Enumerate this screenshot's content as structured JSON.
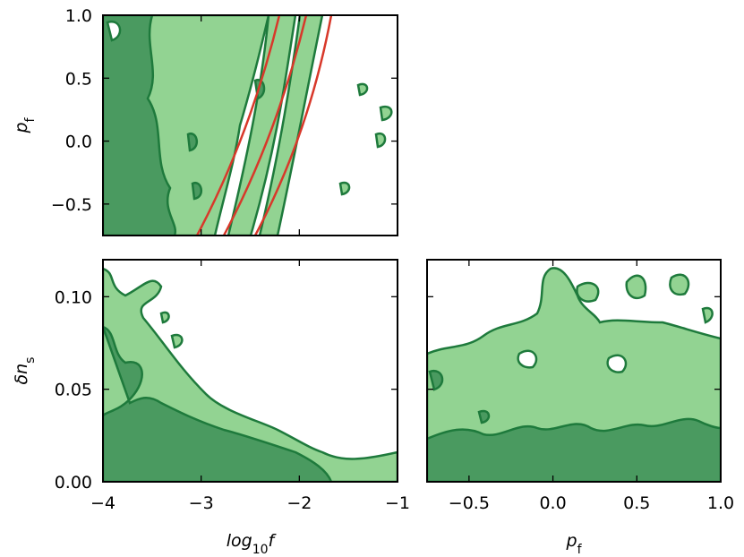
{
  "chart_data": [
    {
      "type": "contour",
      "xlim": [
        -4,
        -1
      ],
      "ylim": [
        -0.75,
        1.0
      ],
      "xticks": [
        -4,
        -3,
        -2,
        -1
      ],
      "show_xticklabels": false,
      "yticks": [
        {
          "value": -0.5,
          "label": "−0.5"
        },
        {
          "value": 0,
          "label": "0.0"
        },
        {
          "value": 0.5,
          "label": "0.5"
        },
        {
          "value": 1.0,
          "label": "1.0"
        }
      ],
      "ylabel": [
        "p",
        "f"
      ]
    },
    {
      "type": "contour",
      "xlim": [
        -4,
        -1
      ],
      "ylim": [
        0,
        0.12
      ],
      "xticks": [
        {
          "value": -4,
          "label": "−4"
        },
        {
          "value": -3,
          "label": "−3"
        },
        {
          "value": -2,
          "label": "−2"
        },
        {
          "value": -1,
          "label": "−1"
        }
      ],
      "yticks": [
        {
          "value": 0,
          "label": "0.00"
        },
        {
          "value": 0.05,
          "label": "0.05"
        },
        {
          "value": 0.1,
          "label": "0.10"
        }
      ],
      "xlabel": [
        "log",
        "10",
        "f"
      ],
      "ylabel": [
        "δn",
        "s"
      ]
    },
    {
      "type": "contour",
      "xlim": [
        -0.75,
        1.0
      ],
      "ylim": [
        0,
        0.12
      ],
      "xticks": [
        {
          "value": -0.5,
          "label": "−0.5"
        },
        {
          "value": 0,
          "label": "0.0"
        },
        {
          "value": 0.5,
          "label": "0.5"
        },
        {
          "value": 1.0,
          "label": "1.0"
        }
      ],
      "yticks": [
        0,
        0.05,
        0.1
      ],
      "show_yticklabels": false,
      "xlabel": [
        "p",
        "f"
      ]
    }
  ]
}
